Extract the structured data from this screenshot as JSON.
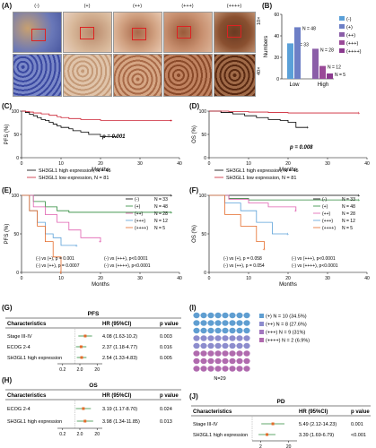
{
  "panel_labels": {
    "A": "(A)",
    "B": "(B)",
    "C": "(C)",
    "D": "(D)",
    "E": "(E)",
    "F": "(F)",
    "G": "(G)",
    "H": "(H)",
    "I": "(I)",
    "J": "(J)"
  },
  "panelA": {
    "headers": [
      "(-)",
      "(+)",
      "(++)",
      "(+++)",
      "(++++)"
    ],
    "mag_top": "10×",
    "mag_bottom": "40×"
  },
  "colors": {
    "blue": "#5aa0d8",
    "purple": "#8b3a8f",
    "orange": "#e46b2a",
    "green": "#2c8a3a",
    "pink": "#e060b0",
    "black": "#000000",
    "red": "#cc2233",
    "tealdot": "#5f9ed1",
    "mauvedot": "#b06aae"
  },
  "chart_data": [
    {
      "panel": "B",
      "type": "bar",
      "categories": [
        "Low",
        "High"
      ],
      "ylabel": "Numbers",
      "ylim": [
        0,
        60
      ],
      "yticks": [
        0,
        20,
        40,
        60
      ],
      "series": [
        {
          "name": "(-)",
          "values": [
            33,
            null
          ]
        },
        {
          "name": "(+)",
          "values": [
            48,
            null
          ]
        },
        {
          "name": "(++)",
          "values": [
            null,
            28
          ]
        },
        {
          "name": "(+++)",
          "values": [
            null,
            12
          ]
        },
        {
          "name": "(++++)",
          "values": [
            null,
            5
          ]
        }
      ],
      "bar_labels": [
        "N = 33",
        "N = 48",
        "N = 28",
        "N = 12",
        "N = 5"
      ]
    },
    {
      "panel": "C",
      "type": "line",
      "ylabel": "PFS (%)",
      "xlabel": "Months",
      "xlim": [
        0,
        40
      ],
      "xticks": [
        0,
        10,
        20,
        30,
        40
      ],
      "ylim": [
        0,
        100
      ],
      "yticks": [
        0,
        50,
        100
      ],
      "pvalue": "p = 0.001",
      "legend": [
        "SH3GL1 high expression, N = 45",
        "SH3GL1 low expression, N = 81"
      ],
      "series": [
        {
          "x": [
            0,
            1,
            2,
            3,
            4,
            5,
            6,
            7,
            8,
            9,
            10,
            12,
            13,
            15,
            17,
            20,
            24
          ],
          "y": [
            100,
            97,
            93,
            90,
            86,
            82,
            80,
            76,
            72,
            68,
            65,
            62,
            58,
            55,
            50,
            45,
            45
          ]
        },
        {
          "x": [
            0,
            1,
            2,
            3,
            5,
            7,
            9,
            10,
            12,
            15,
            20,
            30,
            38
          ],
          "y": [
            100,
            99,
            98,
            96,
            94,
            91,
            88,
            86,
            84,
            82,
            80,
            80,
            80
          ]
        }
      ]
    },
    {
      "panel": "D",
      "type": "line",
      "ylabel": "OS (%)",
      "xlabel": "Months",
      "xlim": [
        0,
        40
      ],
      "xticks": [
        0,
        10,
        20,
        30,
        40
      ],
      "ylim": [
        0,
        100
      ],
      "yticks": [
        0,
        50,
        100
      ],
      "pvalue": "p = 0.008",
      "legend": [
        "SH3GL1 high expression, N = 45",
        "SH3GL1 low expression, N = 81"
      ],
      "series": [
        {
          "x": [
            0,
            3,
            6,
            9,
            12,
            15,
            18,
            20,
            22,
            25
          ],
          "y": [
            100,
            97,
            94,
            90,
            86,
            82,
            80,
            76,
            65,
            65
          ]
        },
        {
          "x": [
            0,
            5,
            10,
            15,
            20,
            30,
            38
          ],
          "y": [
            100,
            99,
            98,
            97,
            96,
            96,
            96
          ]
        }
      ]
    },
    {
      "panel": "E",
      "type": "line",
      "ylabel": "PFS (%)",
      "xlabel": "Months",
      "xlim": [
        0,
        40
      ],
      "xticks": [
        0,
        10,
        20,
        30,
        40
      ],
      "ylim": [
        0,
        100
      ],
      "yticks": [
        0,
        50,
        100
      ],
      "legend": [
        "(-)",
        "(+)",
        "(++)",
        "(+++)",
        "(++++)"
      ],
      "legend_n": [
        "N = 33",
        "N = 48",
        "N = 28",
        "N = 12",
        "N = 5"
      ],
      "comparisons": [
        "(-) vs (+), p = 0.001",
        "(-) vs (+++), p<0.0001",
        "(-) vs (++), p = 0.0007",
        "(-) vs (++++), p<0.0001"
      ],
      "series": [
        {
          "x": [
            0,
            5,
            10,
            20,
            30,
            38
          ],
          "y": [
            100,
            100,
            100,
            100,
            100,
            100
          ]
        },
        {
          "x": [
            0,
            3,
            6,
            9,
            12,
            20,
            38
          ],
          "y": [
            100,
            92,
            85,
            80,
            78,
            78,
            78
          ]
        },
        {
          "x": [
            0,
            3,
            6,
            9,
            12,
            15,
            20
          ],
          "y": [
            100,
            85,
            75,
            65,
            55,
            45,
            40
          ]
        },
        {
          "x": [
            0,
            2,
            4,
            6,
            8,
            10,
            14
          ],
          "y": [
            100,
            80,
            65,
            50,
            45,
            35,
            35
          ]
        },
        {
          "x": [
            0,
            2,
            4,
            6,
            8,
            10
          ],
          "y": [
            100,
            80,
            60,
            40,
            20,
            0
          ]
        }
      ]
    },
    {
      "panel": "F",
      "type": "line",
      "ylabel": "OS (%)",
      "xlabel": "Months",
      "xlim": [
        0,
        40
      ],
      "xticks": [
        0,
        10,
        20,
        30,
        40
      ],
      "ylim": [
        0,
        100
      ],
      "yticks": [
        0,
        50,
        100
      ],
      "legend": [
        "(-)",
        "(+)",
        "(++)",
        "(+++)",
        "(++++)"
      ],
      "legend_n": [
        "N = 33",
        "N = 48",
        "N = 28",
        "N = 12",
        "N = 5"
      ],
      "comparisons": [
        "(-) vs (+), p = 0.058",
        "(-) vs (+++), p<0.0001",
        "(-) vs (++), p = 0.054",
        "(-) vs (++++), p<0.0001"
      ],
      "series": [
        {
          "x": [
            0,
            10,
            20,
            30,
            38
          ],
          "y": [
            100,
            100,
            100,
            100,
            100
          ]
        },
        {
          "x": [
            0,
            5,
            10,
            20,
            38
          ],
          "y": [
            100,
            96,
            94,
            94,
            94
          ]
        },
        {
          "x": [
            0,
            5,
            10,
            15,
            22
          ],
          "y": [
            100,
            95,
            90,
            85,
            80
          ]
        },
        {
          "x": [
            0,
            4,
            8,
            12,
            16,
            20
          ],
          "y": [
            100,
            90,
            80,
            65,
            50,
            50
          ]
        },
        {
          "x": [
            0,
            4,
            8,
            12,
            14
          ],
          "y": [
            100,
            75,
            60,
            40,
            30
          ]
        }
      ]
    },
    {
      "panel": "G",
      "type": "table",
      "title": "PFS",
      "columns": [
        "Characteristics",
        "HR (95%CI)",
        "p value"
      ],
      "rows": [
        {
          "name": "Stage III-IV",
          "hr": 4.08,
          "ci": [
            1.63,
            10.2
          ],
          "hr_text": "4.08 (1.63-10.2)",
          "p": "0.003"
        },
        {
          "name": "ECOG 2-4",
          "hr": 2.37,
          "ci": [
            1.18,
            4.77
          ],
          "hr_text": "2.37 (1.18-4.77)",
          "p": "0.016"
        },
        {
          "name": "SH3GL1 high expression",
          "hr": 2.54,
          "ci": [
            1.33,
            4.83
          ],
          "hr_text": "2.54 (1.33-4.83)",
          "p": "0.005"
        }
      ],
      "xticks": [
        "0.2",
        "2.0",
        "20"
      ]
    },
    {
      "panel": "H",
      "type": "table",
      "title": "OS",
      "columns": [
        "Characteristics",
        "HR (95%CI)",
        "p value"
      ],
      "rows": [
        {
          "name": "ECOG 2-4",
          "hr": 3.19,
          "ci": [
            1.17,
            8.7
          ],
          "hr_text": "3.19 (1.17-8.70)",
          "p": "0.024"
        },
        {
          "name": "SH3GL1 high expression",
          "hr": 3.98,
          "ci": [
            1.34,
            11.85
          ],
          "hr_text": "3.98 (1.34-11.85)",
          "p": "0.013"
        }
      ],
      "xticks": [
        "0.2",
        "2.0",
        "20"
      ]
    },
    {
      "panel": "I",
      "type": "pie",
      "total_label": "N=29",
      "legend": [
        "(+) N = 10 (34.5%)",
        "(++) N = 8 (27.6%)",
        "(+++) N = 9 (31%)",
        "(++++) N = 2 (6.9%)"
      ],
      "values": [
        10,
        8,
        9,
        2
      ],
      "grid_rows": [
        [
          "blue",
          5,
          "purple",
          3
        ],
        [
          "blue",
          5,
          "purple",
          3
        ]
      ]
    },
    {
      "panel": "J",
      "type": "table",
      "title": "PD",
      "columns": [
        "Characteristics",
        "HR (95%CI)",
        "p value"
      ],
      "rows": [
        {
          "name": "Stage III-IV",
          "hr": 5.49,
          "ci": [
            2.12,
            14.23
          ],
          "hr_text": "5.49 (2.12-14.23)",
          "p": "0.001"
        },
        {
          "name": "SH3GL1 high expression",
          "hr": 3.39,
          "ci": [
            1.69,
            6.79
          ],
          "hr_text": "3.39 (1.69-6.79)",
          "p": "<0.001"
        }
      ],
      "xticks": [
        "2",
        "20"
      ]
    }
  ]
}
